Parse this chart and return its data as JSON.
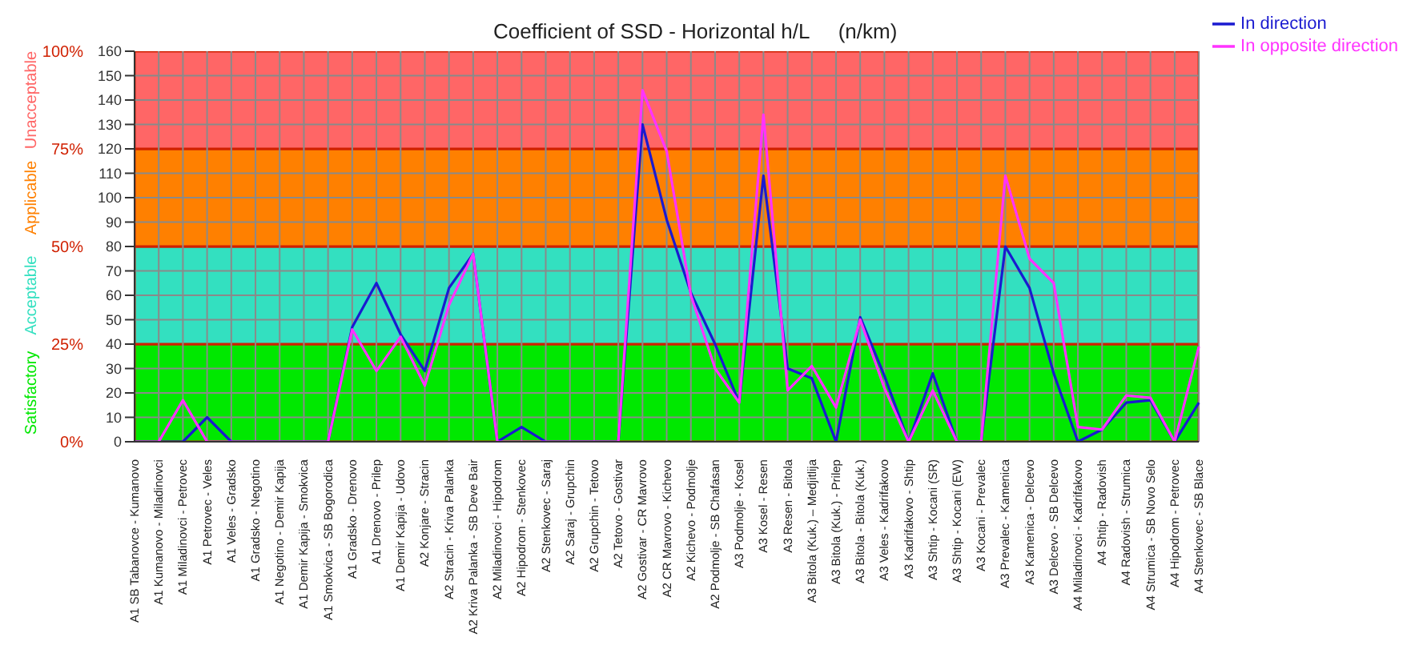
{
  "chart_data": {
    "type": "line",
    "title": "Coefficient of SSD - Horizontal h/L     (n/km)",
    "categories": [
      "A1 SB Tabanovce - Kumanovo",
      "A1 Kumanovo - Miladinovci",
      "A1 Miladinovci - Petrovec",
      "A1 Petrovec - Veles",
      "A1 Veles - Gradsko",
      "A1 Gradsko - Negotino",
      "A1 Negotino - Demir Kapija",
      "A1 Demir Kapija - Smokvica",
      "A1 Smokvica - SB Bogorodica",
      "A1 Gradsko - Drenovo",
      "A1 Drenovo - Prilep",
      "A1 Demir Kapija - Udovo",
      "A2 Konjare - Stracin",
      "A2 Stracin - Kriva Palanka",
      "A2 Kriva Palanka - SB Deve Bair",
      "A2 Miladinovci - Hipodrom",
      "A2 Hipodrom - Stenkovec",
      "A2 Stenkovec - Saraj",
      "A2 Saraj - Grupchin",
      "A2 Grupchin - Tetovo",
      "A2 Tetovo - Gostivar",
      "A2 Gostivar - CR Mavrovo",
      "A2 CR Mavrovo - Kichevo",
      "A2 Kichevo - Podmolje",
      "A2 Podmolje - SB Chafasan",
      "A3 Podmolje - Kosel",
      "A3 Kosel - Resen",
      "A3 Resen - Bitola",
      "A3 Bitola (Kuk.) – Medjitlija",
      "A3 Bitola (Kuk.) - Prilep",
      "A3 Bitola - Bitola (Kuk.)",
      "A3 Veles - Kadrifakovo",
      "A3 Kadrifakovo - Shtip",
      "A3 Shtip - Kocani (SR)",
      "A3 Shtip - Kocani (EW)",
      "A3 Kocani - Prevalec",
      "A3 Prevalec - Kamenica",
      "A3 Kamenica - Delcevo",
      "A3 Delcevo - SB Delcevo",
      "A4 Miladinovci - Kadrifakovo",
      "A4 Shtip - Radovish",
      "A4 Radovish - Strumica",
      "A4 Strumica - SB Novo Selo",
      "A4 Hipodrom - Petrovec",
      "A4 Stenkovec - SB Blace"
    ],
    "series": [
      {
        "name": "In direction",
        "color": "#1a1ad0",
        "values": [
          0,
          0,
          0,
          10,
          0,
          0,
          0,
          0,
          0,
          47,
          65,
          44,
          29,
          63,
          77,
          0,
          6,
          0,
          0,
          0,
          0,
          130,
          91,
          61,
          40,
          16,
          109,
          30,
          26,
          0,
          51,
          27,
          0,
          28,
          0,
          0,
          80,
          63,
          28,
          0,
          5,
          16,
          17,
          0,
          16
        ]
      },
      {
        "name": "In opposite direction",
        "color": "#ff33ff",
        "values": [
          0,
          0,
          17,
          0,
          0,
          0,
          0,
          0,
          0,
          46,
          29,
          43,
          23,
          56,
          77,
          0,
          0,
          0,
          0,
          0,
          0,
          144,
          119,
          60,
          30,
          16,
          134,
          21,
          31,
          14,
          50,
          22,
          0,
          21,
          0,
          0,
          109,
          75,
          65,
          6,
          5,
          19,
          18,
          0,
          39
        ]
      }
    ],
    "ylim": [
      0,
      160
    ],
    "yticks": [
      0,
      10,
      20,
      30,
      40,
      50,
      60,
      70,
      80,
      90,
      100,
      110,
      120,
      130,
      140,
      150,
      160
    ],
    "y2lim": [
      0,
      100
    ],
    "y2ticks": [
      {
        "value": 0,
        "label": "0%"
      },
      {
        "value": 25,
        "label": "25%"
      },
      {
        "value": 50,
        "label": "50%"
      },
      {
        "value": 75,
        "label": "75%"
      },
      {
        "value": 100,
        "label": "100%"
      }
    ],
    "bands": [
      {
        "axis": "y",
        "from": 0,
        "to": 40,
        "label": "Satisfactory",
        "color": "#00e800"
      },
      {
        "axis": "y",
        "from": 40,
        "to": 80,
        "label": "Acceptable",
        "color": "#33e0c0"
      },
      {
        "axis": "y",
        "from": 80,
        "to": 120,
        "label": "Applicable",
        "color": "#ff8000"
      },
      {
        "axis": "y",
        "from": 120,
        "to": 160,
        "label": "Unacceptable",
        "color": "#ff6666"
      }
    ],
    "grid": true,
    "legend": "top right",
    "marker": "none",
    "line_style": "solid"
  }
}
